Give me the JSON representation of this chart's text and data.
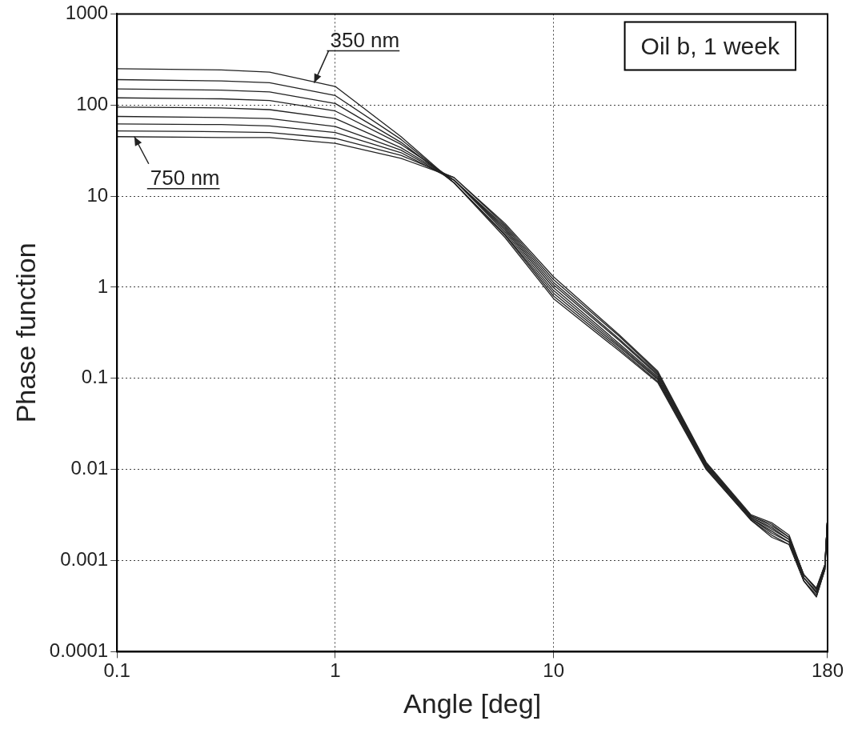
{
  "chart_data": {
    "type": "line",
    "title": "Oil b, 1 week",
    "xlabel": "Angle [deg]",
    "ylabel": "Phase function",
    "log": "xy",
    "grid": true,
    "legend": false,
    "marker": "none",
    "line_style": "solid",
    "x": [
      0.1,
      0.3,
      0.5,
      1,
      2,
      3.5,
      6,
      10,
      20,
      30,
      50,
      80,
      100,
      120,
      140,
      160,
      175,
      180
    ],
    "xlim": [
      0.1,
      180
    ],
    "xticks": [
      0.1,
      1,
      10,
      180
    ],
    "ylim": [
      0.0001,
      1000
    ],
    "yticks": [
      0.0001,
      0.001,
      0.01,
      0.1,
      1,
      10,
      100,
      1000
    ],
    "series": [
      {
        "color": "#222222",
        "values": [
          250,
          243,
          230,
          160,
          45,
          14,
          3.5,
          0.75,
          0.2,
          0.09,
          0.01,
          0.0028,
          0.0018,
          0.0015,
          0.0006,
          0.0004,
          0.0008,
          0.003
        ]
      },
      {
        "color": "#222222",
        "values": [
          190,
          184,
          176,
          127,
          42,
          14,
          3.7,
          0.8,
          0.21,
          0.093,
          0.0102,
          0.0028,
          0.0019,
          0.0015,
          0.0006,
          0.0004,
          0.0008,
          0.003
        ]
      },
      {
        "color": "#222222",
        "values": [
          150,
          146,
          139,
          104,
          39,
          14,
          3.8,
          0.86,
          0.22,
          0.097,
          0.0105,
          0.0029,
          0.002,
          0.0016,
          0.0006,
          0.00042,
          0.0008,
          0.003
        ]
      },
      {
        "color": "#222222",
        "values": [
          120,
          117,
          112,
          86,
          37,
          15,
          4.0,
          0.92,
          0.23,
          0.1,
          0.0107,
          0.0029,
          0.0021,
          0.0016,
          0.00065,
          0.00044,
          0.00085,
          0.003
        ]
      },
      {
        "color": "#222222",
        "values": [
          95,
          93,
          89,
          71,
          34,
          15,
          4.2,
          0.99,
          0.24,
          0.104,
          0.011,
          0.003,
          0.0022,
          0.0017,
          0.00065,
          0.00045,
          0.00085,
          0.003
        ]
      },
      {
        "color": "#222222",
        "values": [
          75,
          73,
          71,
          58,
          32,
          15,
          4.4,
          1.06,
          0.26,
          0.108,
          0.0112,
          0.003,
          0.0023,
          0.0017,
          0.00065,
          0.00046,
          0.00085,
          0.003
        ]
      },
      {
        "color": "#222222",
        "values": [
          62,
          61,
          59,
          50,
          30,
          15,
          4.6,
          1.13,
          0.27,
          0.112,
          0.0115,
          0.0031,
          0.0024,
          0.0018,
          0.0007,
          0.00048,
          0.0009,
          0.003
        ]
      },
      {
        "color": "#222222",
        "values": [
          52,
          51,
          50,
          43,
          28,
          16,
          4.8,
          1.21,
          0.29,
          0.116,
          0.0117,
          0.0031,
          0.0025,
          0.0018,
          0.0007,
          0.00049,
          0.0009,
          0.003
        ]
      },
      {
        "color": "#222222",
        "values": [
          45,
          44,
          44,
          38,
          26,
          16,
          5.0,
          1.3,
          0.3,
          0.12,
          0.012,
          0.0032,
          0.0026,
          0.0019,
          0.0007,
          0.0005,
          0.0009,
          0.003
        ]
      }
    ],
    "annotations": [
      {
        "text": "350 nm",
        "x": 0.8,
        "y": 175
      },
      {
        "text": "750 nm",
        "x": 0.12,
        "y": 45
      }
    ]
  }
}
